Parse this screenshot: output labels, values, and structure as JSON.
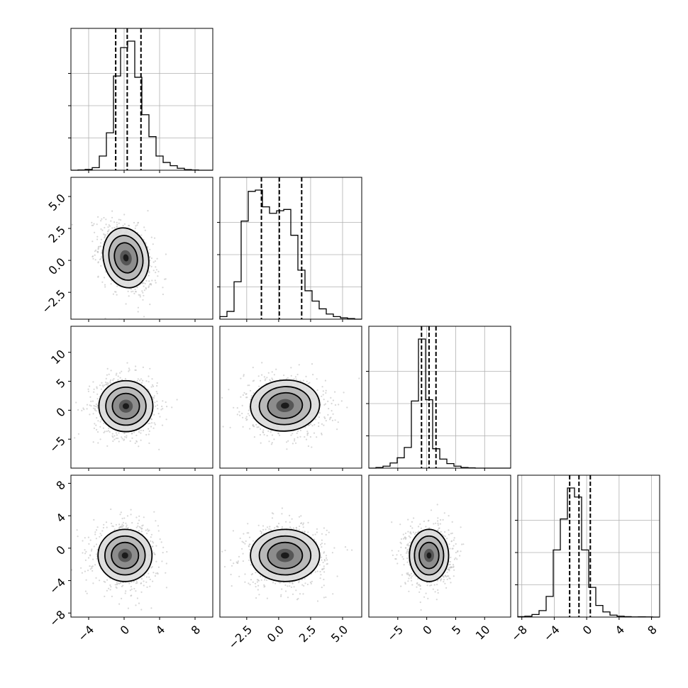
{
  "chart_data": {
    "type": "corner",
    "title": "",
    "grid": true,
    "params": [
      {
        "range": [
          -6.0,
          10.0
        ],
        "ticks": [
          -4,
          0,
          4,
          8
        ],
        "tick_labels": [
          "−4",
          "0",
          "4",
          "8"
        ],
        "quantiles": [
          -0.95,
          0.35,
          1.9
        ],
        "hist": [
          0,
          0.002,
          0.006,
          0.02,
          0.11,
          0.29,
          0.73,
          0.95,
          1.0,
          0.72,
          0.43,
          0.26,
          0.11,
          0.06,
          0.035,
          0.015,
          0.005,
          0.002,
          0,
          0
        ]
      },
      {
        "range": [
          -4.6,
          6.5
        ],
        "ticks": [
          -2.5,
          0.0,
          2.5,
          5.0
        ],
        "tick_labels": [
          "−2.5",
          "0.0",
          "2.5",
          "5.0"
        ],
        "quantiles": [
          -1.35,
          0.05,
          1.8
        ],
        "hist": [
          0.02,
          0.06,
          0.29,
          0.76,
          0.99,
          1.0,
          0.87,
          0.82,
          0.84,
          0.85,
          0.65,
          0.38,
          0.22,
          0.14,
          0.08,
          0.04,
          0.02,
          0.01,
          0.005,
          0
        ]
      },
      {
        "range": [
          -10.0,
          14.5
        ],
        "ticks": [
          -5,
          0,
          5,
          10
        ],
        "tick_labels": [
          "−5",
          "0",
          "5",
          "10"
        ],
        "quantiles": [
          -0.9,
          0.4,
          1.6
        ],
        "hist": [
          0,
          0.005,
          0.015,
          0.04,
          0.08,
          0.16,
          0.52,
          1.0,
          0.53,
          0.15,
          0.07,
          0.035,
          0.015,
          0.005,
          0.002,
          0,
          0,
          0,
          0,
          0
        ]
      },
      {
        "range": [
          -8.5,
          9.0
        ],
        "ticks": [
          -8,
          -4,
          0,
          4,
          8
        ],
        "tick_labels": [
          "−8",
          "−4",
          "0",
          "4",
          "8"
        ],
        "quantiles": [
          -2.1,
          -0.95,
          0.45
        ],
        "hist": [
          0.003,
          0.007,
          0.02,
          0.05,
          0.16,
          0.52,
          0.76,
          1.0,
          0.93,
          0.52,
          0.23,
          0.09,
          0.04,
          0.015,
          0.007,
          0.003,
          0.001,
          0.002,
          0.001,
          0
        ]
      }
    ],
    "pairs": [
      {
        "row": 1,
        "col": 0,
        "center": [
          0.2,
          0.2
        ],
        "sd": [
          1.5,
          1.4
        ],
        "rho": -0.35
      },
      {
        "row": 2,
        "col": 0,
        "center": [
          0.2,
          0.7
        ],
        "sd": [
          1.8,
          2.6
        ],
        "rho": 0.0
      },
      {
        "row": 2,
        "col": 1,
        "center": [
          0.5,
          0.8
        ],
        "sd": [
          1.6,
          2.6
        ],
        "rho": -0.1
      },
      {
        "row": 3,
        "col": 0,
        "center": [
          0.1,
          -0.9
        ],
        "sd": [
          1.8,
          1.9
        ],
        "rho": 0.0
      },
      {
        "row": 3,
        "col": 1,
        "center": [
          0.5,
          -0.9
        ],
        "sd": [
          1.6,
          1.9
        ],
        "rho": 0.0
      },
      {
        "row": 3,
        "col": 2,
        "center": [
          0.4,
          -0.9
        ],
        "sd": [
          2.0,
          1.9
        ],
        "rho": 0.0
      }
    ]
  }
}
